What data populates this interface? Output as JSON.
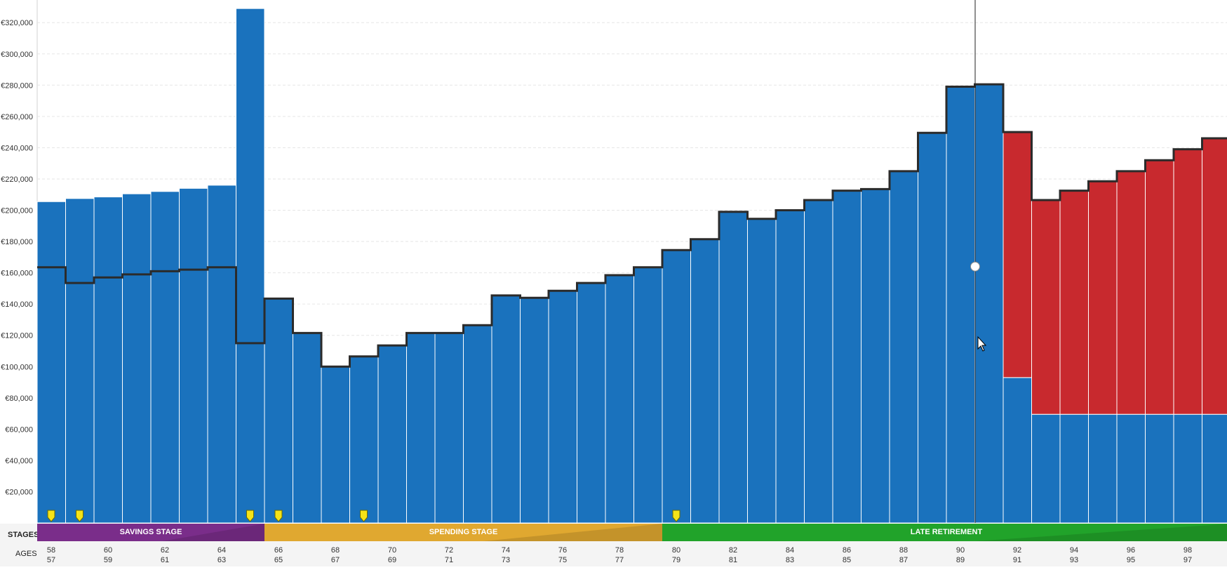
{
  "chart_data": {
    "type": "bar",
    "currency_unit": "€",
    "ylim": [
      0,
      330000
    ],
    "y_ticks": [
      "€20,000",
      "€40,000",
      "€60,000",
      "€80,000",
      "€100,000",
      "€120,000",
      "€140,000",
      "€160,000",
      "€180,000",
      "€200,000",
      "€220,000",
      "€240,000",
      "€260,000",
      "€280,000",
      "€300,000",
      "€320,000"
    ],
    "y_tick_values": [
      20000,
      40000,
      60000,
      80000,
      100000,
      120000,
      140000,
      160000,
      180000,
      200000,
      220000,
      240000,
      260000,
      280000,
      300000,
      320000
    ],
    "grid": true,
    "series": [
      {
        "color": "#1a72bd",
        "values": [
          205500,
          207500,
          208500,
          210500,
          212000,
          214000,
          216000,
          329000,
          143500,
          121500,
          100000,
          106500,
          113500,
          121500,
          121500,
          126500,
          145500,
          144000,
          148500,
          153500,
          158500,
          163500,
          174500,
          181500,
          199000,
          194500,
          200000,
          206500,
          212500,
          213500,
          225000,
          249500,
          279000,
          280500,
          93000,
          69500,
          69500,
          69500,
          69500,
          69500,
          69500,
          69500
        ]
      },
      {
        "color": "#c8292e",
        "values": [
          0,
          0,
          0,
          0,
          0,
          0,
          0,
          0,
          0,
          0,
          0,
          0,
          0,
          0,
          0,
          0,
          0,
          0,
          0,
          0,
          0,
          0,
          0,
          0,
          0,
          0,
          0,
          0,
          0,
          0,
          0,
          0,
          0,
          0,
          157000,
          137000,
          143000,
          149000,
          156000,
          163000,
          170000,
          177000
        ]
      }
    ],
    "outline_values": [
      163500,
      153500,
      157000,
      159000,
      161000,
      162000,
      163500,
      115000,
      143500,
      121500,
      100000,
      106500,
      113500,
      121500,
      121500,
      126500,
      145500,
      144000,
      148500,
      153500,
      158500,
      163500,
      174500,
      181500,
      199000,
      194500,
      200000,
      206500,
      212500,
      213500,
      225000,
      249500,
      279000,
      280500,
      250000,
      206500,
      212500,
      218500,
      225000,
      232000,
      239000,
      246000
    ],
    "event_marker_bar_indices": [
      0,
      1,
      7,
      8,
      11,
      22
    ],
    "cursor_bar_index": 33,
    "cursor_point_value": 164000,
    "stages": {
      "row_label": "STAGES",
      "items": [
        {
          "label": "SAVINGS STAGE",
          "color": "#7a2d8a",
          "start_bar": 0,
          "end_bar": 8
        },
        {
          "label": "SPENDING STAGE",
          "color": "#e0a830",
          "start_bar": 8,
          "end_bar": 22
        },
        {
          "label": "LATE RETIREMENT",
          "color": "#21a32a",
          "start_bar": 22,
          "end_bar": 42
        }
      ]
    },
    "ages": {
      "row_label": "AGES",
      "top_row": [
        "58",
        "60",
        "62",
        "64",
        "66",
        "68",
        "70",
        "72",
        "74",
        "76",
        "78",
        "80",
        "82",
        "84",
        "86",
        "88",
        "90",
        "92",
        "94",
        "96",
        "98"
      ],
      "bottom_row": [
        "57",
        "59",
        "61",
        "63",
        "65",
        "67",
        "69",
        "71",
        "73",
        "75",
        "77",
        "79",
        "81",
        "83",
        "85",
        "87",
        "89",
        "91",
        "93",
        "95",
        "97"
      ]
    }
  }
}
